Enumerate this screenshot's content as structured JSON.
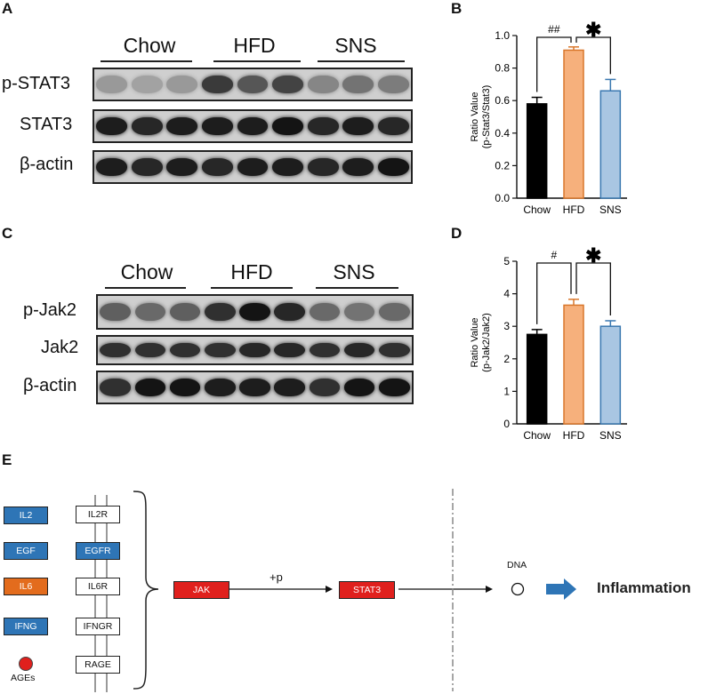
{
  "panels": {
    "A": {
      "letter": "A",
      "groups": [
        "Chow",
        "HFD",
        "SNS"
      ],
      "rows": [
        {
          "label": "p-STAT3",
          "intensity": [
            0.25,
            0.2,
            0.25,
            0.75,
            0.6,
            0.7,
            0.35,
            0.45,
            0.4
          ]
        },
        {
          "label": "STAT3",
          "intensity": [
            0.9,
            0.85,
            0.9,
            0.9,
            0.9,
            0.95,
            0.85,
            0.9,
            0.85
          ]
        },
        {
          "label": "β-actin",
          "intensity": [
            0.9,
            0.85,
            0.9,
            0.85,
            0.9,
            0.9,
            0.85,
            0.9,
            0.95
          ]
        }
      ]
    },
    "C": {
      "letter": "C",
      "groups": [
        "Chow",
        "HFD",
        "SNS"
      ],
      "rows": [
        {
          "label": "p-Jak2",
          "intensity": [
            0.55,
            0.5,
            0.55,
            0.8,
            0.95,
            0.85,
            0.5,
            0.45,
            0.5
          ]
        },
        {
          "label": "Jak2",
          "intensity": [
            0.8,
            0.8,
            0.8,
            0.8,
            0.85,
            0.85,
            0.8,
            0.85,
            0.8
          ]
        },
        {
          "label": "β-actin",
          "intensity": [
            0.8,
            0.95,
            0.95,
            0.9,
            0.9,
            0.9,
            0.8,
            0.95,
            0.95
          ]
        }
      ]
    },
    "E": {
      "letter": "E",
      "ligands": [
        {
          "label": "IL2",
          "color": "blue"
        },
        {
          "label": "EGF",
          "color": "blue"
        },
        {
          "label": "IL6",
          "color": "orange"
        },
        {
          "label": "IFNG",
          "color": "blue"
        },
        {
          "label": "AGEs",
          "color": "red-dot"
        }
      ],
      "receptors": [
        {
          "label": "IL2R",
          "color": "white"
        },
        {
          "label": "EGFR",
          "color": "blue"
        },
        {
          "label": "IL6R",
          "color": "white"
        },
        {
          "label": "IFNGR",
          "color": "white"
        },
        {
          "label": "RAGE",
          "color": "white"
        }
      ],
      "jak": "JAK",
      "arrow_label": "+p",
      "stat3": "STAT3",
      "dna": "DNA",
      "outcome": "Inflammation"
    }
  },
  "chart_data": [
    {
      "panel": "B",
      "type": "bar",
      "categories": [
        "Chow",
        "HFD",
        "SNS"
      ],
      "values": [
        0.58,
        0.91,
        0.66
      ],
      "errors": [
        0.04,
        0.02,
        0.07
      ],
      "colors": [
        "#000000",
        "#f6b07c",
        "#a9c6e2"
      ],
      "edge_colors": [
        "#000000",
        "#d9772b",
        "#3a78b0"
      ],
      "ylabel": "Ratio Value",
      "ylabel2": "(p-Stat3/Stat3)",
      "ylim": [
        0,
        1.0
      ],
      "yticks": [
        "0.0",
        "0.2",
        "0.4",
        "0.6",
        "0.8",
        "1.0"
      ],
      "annotations": [
        {
          "between": [
            0,
            1
          ],
          "text": "##"
        },
        {
          "between": [
            1,
            2
          ],
          "text": "*"
        }
      ]
    },
    {
      "panel": "D",
      "type": "bar",
      "categories": [
        "Chow",
        "HFD",
        "SNS"
      ],
      "values": [
        2.75,
        3.65,
        3.0
      ],
      "errors": [
        0.15,
        0.18,
        0.17
      ],
      "colors": [
        "#000000",
        "#f6b07c",
        "#a9c6e2"
      ],
      "edge_colors": [
        "#000000",
        "#d9772b",
        "#3a78b0"
      ],
      "ylabel": "Ratio Value",
      "ylabel2": "(p-Jak2/Jak2)",
      "ylim": [
        0,
        5
      ],
      "yticks": [
        "0",
        "1",
        "2",
        "3",
        "4",
        "5"
      ],
      "annotations": [
        {
          "between": [
            0,
            1
          ],
          "text": "#"
        },
        {
          "between": [
            1,
            2
          ],
          "text": "*"
        }
      ]
    }
  ]
}
